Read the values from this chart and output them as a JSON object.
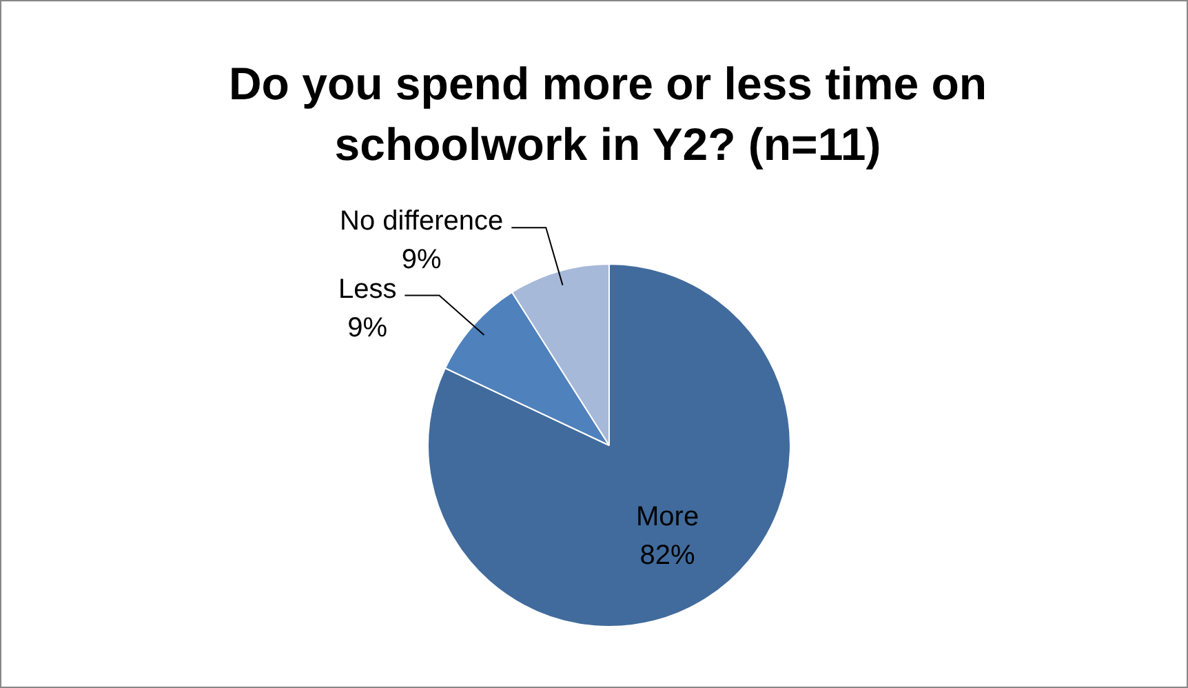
{
  "chart_data": {
    "type": "pie",
    "title": "Do you spend more or less time on schoolwork in Y2? (n=11)",
    "categories": [
      "More",
      "Less",
      "No difference"
    ],
    "values": [
      82,
      9,
      9
    ],
    "value_labels": [
      "82%",
      "9%",
      "9%"
    ],
    "colors": [
      "#416b9c",
      "#4f81bd",
      "#a7b9d9"
    ],
    "legend": false
  }
}
